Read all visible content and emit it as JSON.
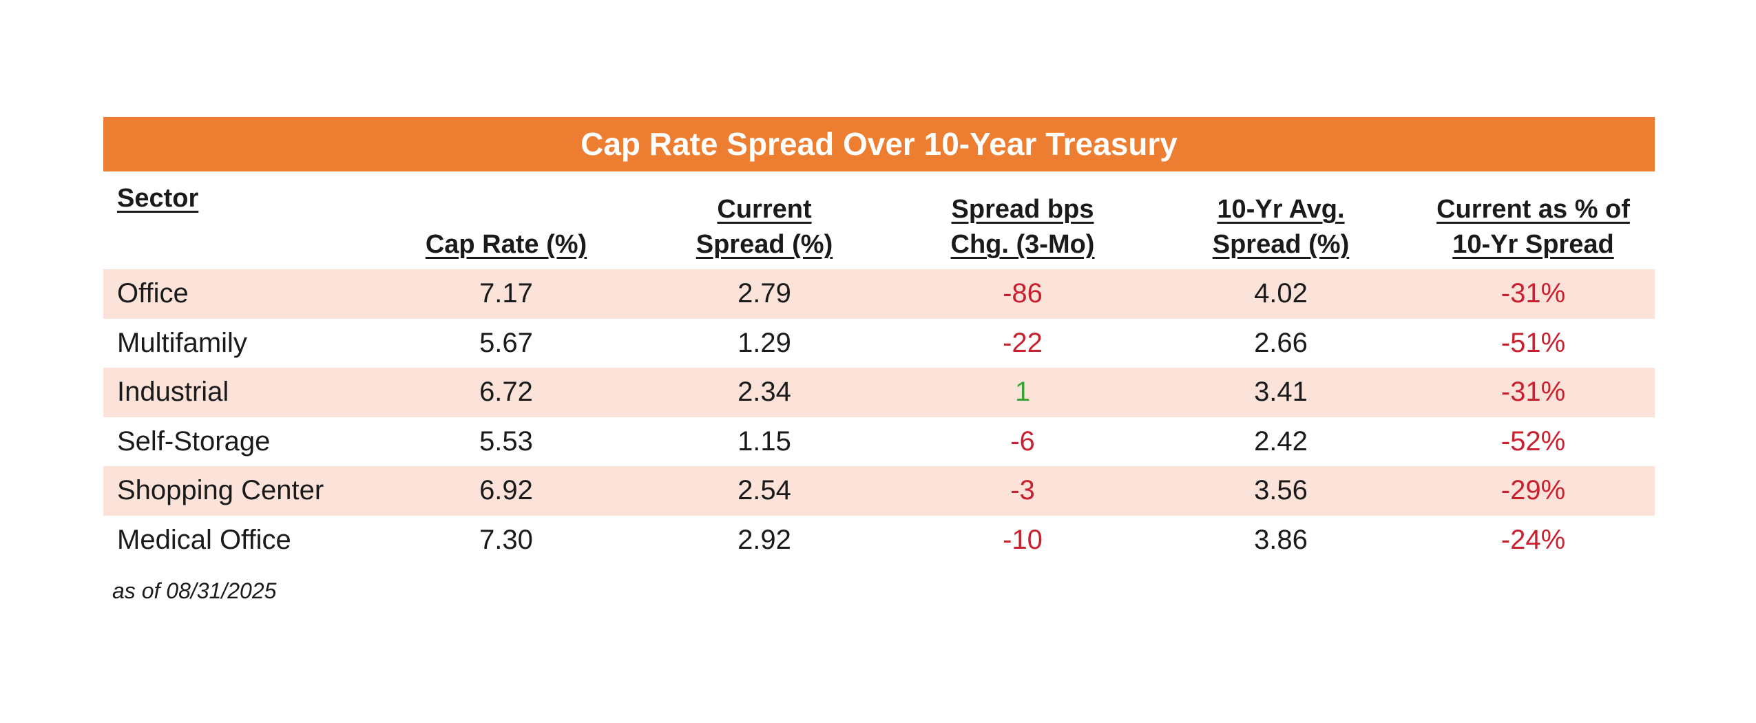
{
  "chart_data": {
    "type": "table",
    "title": "Cap Rate Spread Over 10-Year Treasury",
    "columns": [
      "Sector",
      "Cap Rate (%)",
      "Current\nSpread (%)",
      "Spread bps\nChg. (3-Mo)",
      "10-Yr Avg.\nSpread (%)",
      "Current as % of\n10-Yr Spread"
    ],
    "rows": [
      {
        "sector": "Office",
        "cap_rate": "7.17",
        "current_spread": "2.79",
        "spread_chg": "-86",
        "avg_spread": "4.02",
        "pct_of_avg": "-31%"
      },
      {
        "sector": "Multifamily",
        "cap_rate": "5.67",
        "current_spread": "1.29",
        "spread_chg": "-22",
        "avg_spread": "2.66",
        "pct_of_avg": "-51%"
      },
      {
        "sector": "Industrial",
        "cap_rate": "6.72",
        "current_spread": "2.34",
        "spread_chg": "1",
        "avg_spread": "3.41",
        "pct_of_avg": "-31%"
      },
      {
        "sector": "Self-Storage",
        "cap_rate": "5.53",
        "current_spread": "1.15",
        "spread_chg": "-6",
        "avg_spread": "2.42",
        "pct_of_avg": "-52%"
      },
      {
        "sector": "Shopping Center",
        "cap_rate": "6.92",
        "current_spread": "2.54",
        "spread_chg": "-3",
        "avg_spread": "3.56",
        "pct_of_avg": "-29%"
      },
      {
        "sector": "Medical Office",
        "cap_rate": "7.30",
        "current_spread": "2.92",
        "spread_chg": "-10",
        "avg_spread": "3.86",
        "pct_of_avg": "-24%"
      }
    ],
    "footnote": "as of 08/31/2025"
  },
  "colors": {
    "title_bar": "#ed7d31",
    "shaded_row": "#fbe3da",
    "negative": "#c8202f",
    "positive": "#3aa335"
  }
}
